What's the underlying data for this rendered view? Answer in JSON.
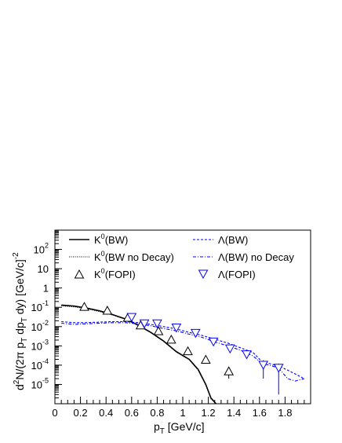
{
  "chart_data": {
    "type": "line",
    "xlabel": "p",
    "xlabel_sub": "T",
    "xlabel_unit": "[GeV/c]",
    "ylabel_parts": [
      "d",
      "2",
      "N/(2π p",
      "T",
      "dp",
      "T",
      "dy) [GeV/c]",
      "-2"
    ],
    "xlim": [
      0,
      2.0
    ],
    "ylim_log10": [
      -6,
      3
    ],
    "x_ticks": [
      {
        "v": 0,
        "label": "0"
      },
      {
        "v": 0.2,
        "label": "0.2"
      },
      {
        "v": 0.4,
        "label": "0.4"
      },
      {
        "v": 0.6,
        "label": "0.6"
      },
      {
        "v": 0.8,
        "label": "0.8"
      },
      {
        "v": 1.0,
        "label": "1"
      },
      {
        "v": 1.2,
        "label": "1.2"
      },
      {
        "v": 1.4,
        "label": "1.4"
      },
      {
        "v": 1.6,
        "label": "1.6"
      },
      {
        "v": 1.8,
        "label": "1.8"
      }
    ],
    "y_ticks": [
      {
        "exp": 2,
        "base": "10",
        "sup": "2"
      },
      {
        "exp": 1,
        "base": "10",
        "sup": ""
      },
      {
        "exp": 0,
        "base": "1",
        "sup": ""
      },
      {
        "exp": -1,
        "base": "10",
        "sup": "-1"
      },
      {
        "exp": -2,
        "base": "10",
        "sup": "-2"
      },
      {
        "exp": -3,
        "base": "10",
        "sup": "-3"
      },
      {
        "exp": -4,
        "base": "10",
        "sup": "-4"
      },
      {
        "exp": -5,
        "base": "10",
        "sup": "-5"
      }
    ],
    "legend_position": "top",
    "legend": [
      {
        "series": "k0_bw",
        "pre": "K",
        "sup": "0",
        "post": "(BW)"
      },
      {
        "series": "k0_bw_nodecay",
        "pre": "K",
        "sup": "0",
        "post": "(BW no Decay)"
      },
      {
        "series": "k0_fopi",
        "pre": "K",
        "sup": "0",
        "post": "(FOPI)"
      },
      {
        "series": "lambda_bw",
        "pre": "Λ",
        "sup": "",
        "post": "(BW)"
      },
      {
        "series": "lambda_bw_nodecay",
        "pre": "Λ",
        "sup": "",
        "post": "(BW) no Decay"
      },
      {
        "series": "lambda_fopi",
        "pre": "Λ",
        "sup": "",
        "post": "(FOPI)"
      }
    ],
    "colors": {
      "kaon": "#000000",
      "lambda": "#0000ff"
    },
    "series": [
      {
        "id": "k0_bw",
        "kind": "line",
        "style": "solid",
        "color": "#000000",
        "x": [
          0.05,
          0.15,
          0.25,
          0.35,
          0.45,
          0.55,
          0.65,
          0.75,
          0.85,
          0.95,
          1.05,
          1.12,
          1.18,
          1.22,
          1.26
        ],
        "y": [
          0.13,
          0.115,
          0.09,
          0.065,
          0.042,
          0.025,
          0.012,
          0.005,
          0.0018,
          0.0005,
          0.0002,
          6e-05,
          1e-05,
          2e-06,
          2e-07
        ]
      },
      {
        "id": "k0_bw_nodecay",
        "kind": "line",
        "style": "dotted",
        "color": "#000000",
        "x": [
          0.05,
          0.15,
          0.25,
          0.35,
          0.45,
          0.55,
          0.65,
          0.75,
          0.85,
          0.95,
          1.05,
          1.12,
          1.18,
          1.22,
          1.26
        ],
        "y": [
          0.12,
          0.105,
          0.085,
          0.06,
          0.04,
          0.024,
          0.0115,
          0.0048,
          0.0017,
          0.00048,
          0.00019,
          5.5e-05,
          9.5e-06,
          1.8e-06,
          2e-07
        ]
      },
      {
        "id": "lambda_bw",
        "kind": "line",
        "style": "dashed",
        "color": "#0000ff",
        "x": [
          0.05,
          0.15,
          0.25,
          0.35,
          0.45,
          0.55,
          0.65,
          0.75,
          0.85,
          0.95,
          1.05,
          1.15,
          1.25,
          1.35,
          1.45,
          1.55,
          1.62,
          1.68,
          1.75,
          1.82,
          1.88,
          1.95
        ],
        "y": [
          0.018,
          0.016,
          0.016,
          0.017,
          0.018,
          0.018,
          0.016,
          0.013,
          0.01,
          0.0075,
          0.005,
          0.0035,
          0.0022,
          0.0014,
          0.0008,
          0.00045,
          0.00015,
          0.00012,
          9e-05,
          5.5e-05,
          3.5e-05,
          2e-05
        ]
      },
      {
        "id": "lambda_bw_nodecay",
        "kind": "line",
        "style": "dashdot",
        "color": "#0000ff",
        "x": [
          0.05,
          0.15,
          0.25,
          0.35,
          0.45,
          0.55,
          0.65,
          0.75,
          0.85,
          0.95,
          1.05,
          1.15,
          1.25,
          1.35,
          1.45,
          1.55,
          1.62,
          1.68,
          1.75,
          1.82,
          1.88,
          1.95
        ],
        "y": [
          0.015,
          0.013,
          0.014,
          0.015,
          0.016,
          0.016,
          0.014,
          0.011,
          0.008,
          0.006,
          0.004,
          0.0028,
          0.0016,
          0.001,
          0.0006,
          0.0003,
          0.00012,
          0.0001,
          7e-05,
          2e-05,
          1.5e-05,
          2e-05
        ]
      },
      {
        "id": "k0_fopi",
        "kind": "markers",
        "marker": "triangle-up",
        "color": "#000000",
        "x": [
          0.23,
          0.41,
          0.57,
          0.67,
          0.81,
          0.91,
          1.04,
          1.18,
          1.36
        ],
        "y": [
          0.11,
          0.07,
          0.03,
          0.012,
          0.006,
          0.0022,
          0.00055,
          0.0002,
          5e-05
        ],
        "err_low": [
          0.1,
          0.063,
          0.027,
          0.01,
          0.004,
          0.0018,
          0.0004,
          0.00013,
          2e-05
        ],
        "err_high": [
          0.12,
          0.077,
          0.033,
          0.014,
          0.008,
          0.0026,
          0.0007,
          0.00027,
          8e-05
        ]
      },
      {
        "id": "lambda_fopi",
        "kind": "markers",
        "marker": "triangle-down",
        "color": "#0000ff",
        "x": [
          0.6,
          0.7,
          0.8,
          0.95,
          1.1,
          1.24,
          1.37,
          1.5,
          1.63,
          1.75
        ],
        "y": [
          0.03,
          0.014,
          0.014,
          0.0085,
          0.0045,
          0.0016,
          0.0007,
          0.00035,
          0.0001,
          7e-05
        ],
        "err_low": [
          0.027,
          0.012,
          0.012,
          0.0075,
          0.0038,
          0.0013,
          0.0005,
          0.00025,
          2e-05,
          3e-06
        ],
        "err_high": [
          0.033,
          0.016,
          0.016,
          0.0095,
          0.0052,
          0.0019,
          0.0009,
          0.00045,
          0.00018,
          0.00012
        ]
      }
    ]
  }
}
